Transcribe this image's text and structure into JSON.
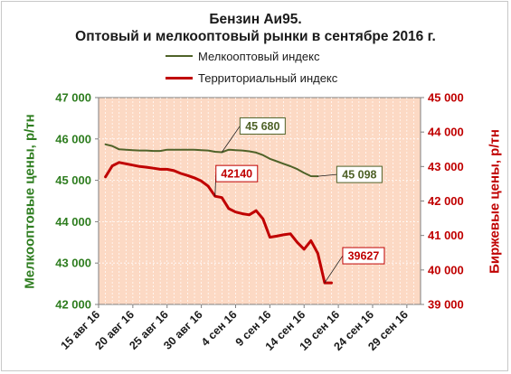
{
  "title_line1": "Бензин Аи95.",
  "title_line2": "Оптовый и мелкооптовый рынки в сентябре 2016 г.",
  "legend": {
    "small_wholesale": "Мелкооптовый индекс",
    "territorial": "Территориальный индекс"
  },
  "left_axis_label": "Мелкооптовые цены, р/тн",
  "right_axis_label": "Биржевые цены, р/тн",
  "chart_data": {
    "type": "line",
    "title": "Бензин Аи95. Оптовый и мелкооптовый рынки в сентябре 2016 г.",
    "x_ticks": [
      "15 авг 16",
      "20 авг 16",
      "25 авг 16",
      "30 авг 16",
      "4 сен 16",
      "9 сен 16",
      "14 сен 16",
      "19 сен 16",
      "24 сен 16",
      "29 сен 16"
    ],
    "x_range": [
      "2016-08-15",
      "2016-10-01"
    ],
    "y_left": {
      "label": "Мелкооптовые цены, р/тн",
      "ylim": [
        42000,
        47000
      ],
      "ticks": [
        "42 000",
        "43 000",
        "44 000",
        "45 000",
        "46 000",
        "47 000"
      ]
    },
    "y_right": {
      "label": "Биржевые цены, р/тн",
      "ylim": [
        39000,
        45000
      ],
      "ticks": [
        "39 000",
        "40 000",
        "41 000",
        "42 000",
        "43 000",
        "44 000",
        "45 000"
      ]
    },
    "grid": true,
    "series": [
      {
        "name": "Мелкооптовый индекс",
        "axis": "left",
        "color": "#4f6228",
        "x": [
          "2016-08-16",
          "2016-08-17",
          "2016-08-18",
          "2016-08-19",
          "2016-08-20",
          "2016-08-21",
          "2016-08-22",
          "2016-08-23",
          "2016-08-24",
          "2016-08-25",
          "2016-08-26",
          "2016-08-27",
          "2016-08-28",
          "2016-08-29",
          "2016-08-30",
          "2016-08-31",
          "2016-09-01",
          "2016-09-02",
          "2016-09-03",
          "2016-09-04",
          "2016-09-05",
          "2016-09-06",
          "2016-09-07",
          "2016-09-08",
          "2016-09-09",
          "2016-09-10",
          "2016-09-11",
          "2016-09-12",
          "2016-09-13",
          "2016-09-14",
          "2016-09-15",
          "2016-09-16"
        ],
        "values": [
          45870,
          45830,
          45750,
          45740,
          45730,
          45720,
          45720,
          45710,
          45710,
          45740,
          45740,
          45740,
          45740,
          45740,
          45730,
          45720,
          45690,
          45680,
          45740,
          45730,
          45720,
          45700,
          45670,
          45610,
          45520,
          45460,
          45400,
          45340,
          45270,
          45180,
          45100,
          45098
        ]
      },
      {
        "name": "Территориальный индекс",
        "axis": "right",
        "color": "#c00000",
        "x": [
          "2016-08-16",
          "2016-08-17",
          "2016-08-18",
          "2016-08-19",
          "2016-08-20",
          "2016-08-21",
          "2016-08-22",
          "2016-08-23",
          "2016-08-24",
          "2016-08-25",
          "2016-08-26",
          "2016-08-27",
          "2016-08-28",
          "2016-08-29",
          "2016-08-30",
          "2016-08-31",
          "2016-09-01",
          "2016-09-02",
          "2016-09-03",
          "2016-09-04",
          "2016-09-05",
          "2016-09-06",
          "2016-09-07",
          "2016-09-08",
          "2016-09-09",
          "2016-09-10",
          "2016-09-11",
          "2016-09-12",
          "2016-09-13",
          "2016-09-14",
          "2016-09-15",
          "2016-09-16",
          "2016-09-17",
          "2016-09-18"
        ],
        "values": [
          42700,
          43020,
          43120,
          43080,
          43040,
          43000,
          42980,
          42950,
          42920,
          42920,
          42880,
          42800,
          42740,
          42670,
          42580,
          42430,
          42140,
          42100,
          41780,
          41680,
          41630,
          41600,
          41720,
          41480,
          40950,
          40980,
          41020,
          41050,
          40800,
          40600,
          40850,
          40480,
          39627,
          39627
        ]
      }
    ],
    "annotations": [
      {
        "text": "45 680",
        "series": "Мелкооптовый индекс",
        "x": "2016-09-02",
        "y": 45680
      },
      {
        "text": "45 098",
        "series": "Мелкооптовый индекс",
        "x": "2016-09-16",
        "y": 45098
      },
      {
        "text": "42140",
        "series": "Территориальный индекс",
        "x": "2016-09-01",
        "y": 42140
      },
      {
        "text": "39627",
        "series": "Территориальный индекс",
        "x": "2016-09-17",
        "y": 39627
      }
    ]
  }
}
